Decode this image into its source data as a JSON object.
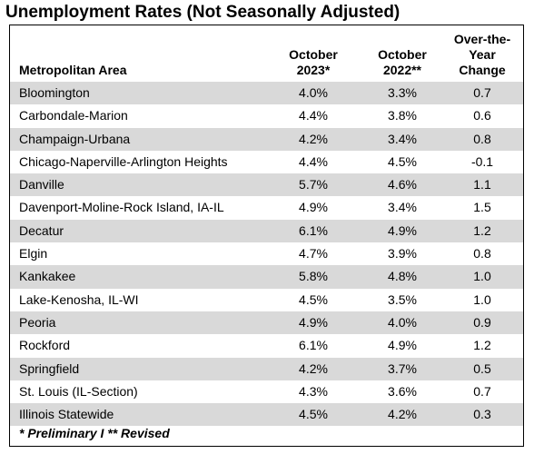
{
  "title": "Unemployment Rates (Not Seasonally Adjusted)",
  "headers": {
    "area": "Metropolitan Area",
    "col1": [
      "October",
      "2023*"
    ],
    "col2": [
      "October",
      "2022**"
    ],
    "col3": [
      "Over-the-",
      "Year",
      "Change"
    ]
  },
  "rows": [
    {
      "area": "Bloomington",
      "oct2023": "4.0%",
      "oct2022": "3.3%",
      "change": "0.7"
    },
    {
      "area": "Carbondale-Marion",
      "oct2023": "4.4%",
      "oct2022": "3.8%",
      "change": "0.6"
    },
    {
      "area": "Champaign-Urbana",
      "oct2023": "4.2%",
      "oct2022": "3.4%",
      "change": "0.8"
    },
    {
      "area": "Chicago-Naperville-Arlington Heights",
      "oct2023": "4.4%",
      "oct2022": "4.5%",
      "change": "-0.1"
    },
    {
      "area": "Danville",
      "oct2023": "5.7%",
      "oct2022": "4.6%",
      "change": "1.1"
    },
    {
      "area": "Davenport-Moline-Rock Island, IA-IL",
      "oct2023": "4.9%",
      "oct2022": "3.4%",
      "change": "1.5"
    },
    {
      "area": "Decatur",
      "oct2023": "6.1%",
      "oct2022": "4.9%",
      "change": "1.2"
    },
    {
      "area": "Elgin",
      "oct2023": "4.7%",
      "oct2022": "3.9%",
      "change": "0.8"
    },
    {
      "area": "Kankakee",
      "oct2023": "5.8%",
      "oct2022": "4.8%",
      "change": "1.0"
    },
    {
      "area": "Lake-Kenosha, IL-WI",
      "oct2023": "4.5%",
      "oct2022": "3.5%",
      "change": "1.0"
    },
    {
      "area": "Peoria",
      "oct2023": "4.9%",
      "oct2022": "4.0%",
      "change": "0.9"
    },
    {
      "area": "Rockford",
      "oct2023": "6.1%",
      "oct2022": "4.9%",
      "change": "1.2"
    },
    {
      "area": "Springfield",
      "oct2023": "4.2%",
      "oct2022": "3.7%",
      "change": "0.5"
    },
    {
      "area": "St. Louis (IL-Section)",
      "oct2023": "4.3%",
      "oct2022": "3.6%",
      "change": "0.7"
    },
    {
      "area": "Illinois Statewide",
      "oct2023": "4.5%",
      "oct2022": "4.2%",
      "change": "0.3"
    }
  ],
  "footnote": "* Preliminary  I  ** Revised",
  "colors": {
    "shade": "#d9d9d9",
    "border": "#000000"
  }
}
